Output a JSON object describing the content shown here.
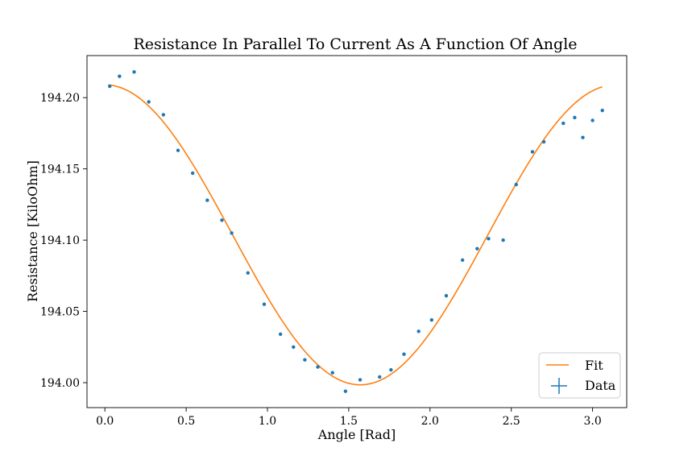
{
  "chart_data": {
    "type": "scatter",
    "title": "Resistance In Parallel To Current As A Function Of Angle",
    "xlabel": "Angle [Rad]",
    "ylabel": "Resistance [KiloOhm]",
    "xlim": [
      -0.11,
      3.21
    ],
    "ylim": [
      193.9825,
      194.2295
    ],
    "xticks": [
      0.0,
      0.5,
      1.0,
      1.5,
      2.0,
      2.5,
      3.0
    ],
    "xtick_labels": [
      "0.0",
      "0.5",
      "1.0",
      "1.5",
      "2.0",
      "2.5",
      "3.0"
    ],
    "yticks": [
      194.0,
      194.05,
      194.1,
      194.15,
      194.2
    ],
    "ytick_labels": [
      "194.00",
      "194.05",
      "194.10",
      "194.15",
      "194.20"
    ],
    "grid": false,
    "legend_position": "bottom-right",
    "series": [
      {
        "name": "Data",
        "kind": "errorbar-points",
        "color": "#1f77b4",
        "x": [
          0.03,
          0.09,
          0.18,
          0.27,
          0.36,
          0.45,
          0.54,
          0.63,
          0.72,
          0.78,
          0.88,
          0.98,
          1.08,
          1.16,
          1.23,
          1.31,
          1.4,
          1.48,
          1.57,
          1.69,
          1.76,
          1.84,
          1.93,
          2.01,
          2.1,
          2.2,
          2.29,
          2.36,
          2.45,
          2.53,
          2.63,
          2.7,
          2.82,
          2.89,
          2.94,
          3.0,
          3.06
        ],
        "y": [
          194.208,
          194.215,
          194.218,
          194.197,
          194.188,
          194.163,
          194.147,
          194.128,
          194.114,
          194.105,
          194.077,
          194.055,
          194.034,
          194.025,
          194.016,
          194.011,
          194.007,
          193.994,
          194.002,
          194.004,
          194.009,
          194.02,
          194.036,
          194.044,
          194.061,
          194.086,
          194.094,
          194.101,
          194.1,
          194.139,
          194.162,
          194.169,
          194.182,
          194.186,
          194.172,
          194.184,
          194.191
        ]
      },
      {
        "name": "Fit",
        "kind": "line",
        "color": "#ff7f0e",
        "model": {
          "form": "offset + amplitude * cos(angle)^2",
          "offset": 193.9985,
          "amplitude": 0.2105,
          "x_start": 0.02,
          "x_end": 3.06
        }
      }
    ]
  }
}
